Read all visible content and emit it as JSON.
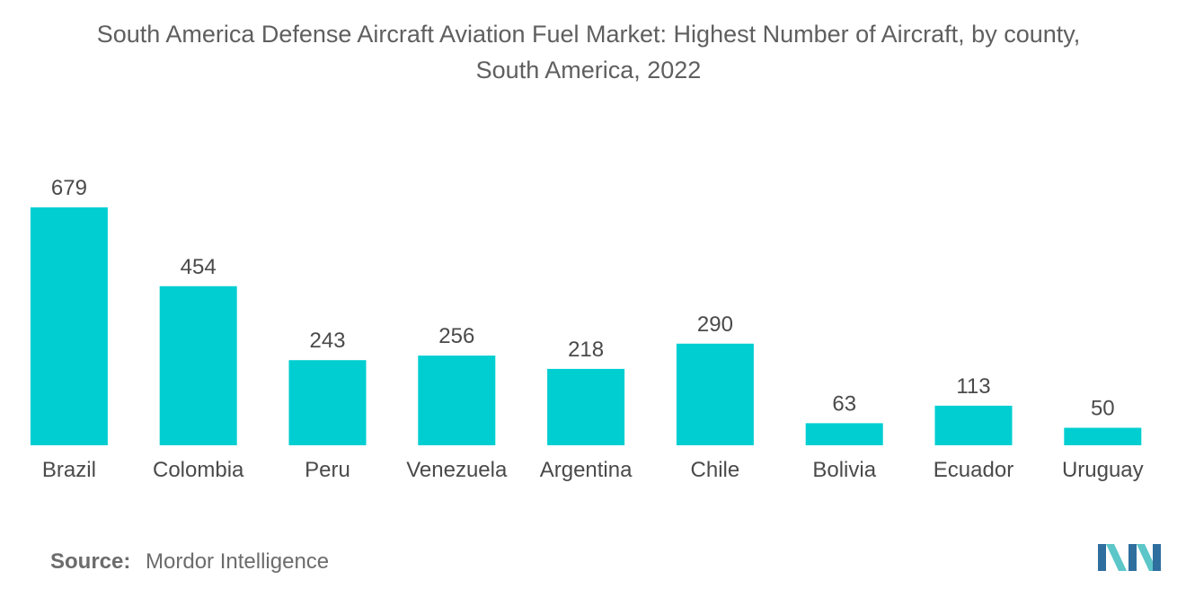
{
  "chart_data": {
    "type": "bar",
    "title_line1": "South America Defense Aircraft Aviation Fuel Market: Highest Number of Aircraft, by county,",
    "title_line2": "South America, 2022",
    "categories": [
      "Brazil",
      "Colombia",
      "Peru",
      "Venezuela",
      "Argentina",
      "Chile",
      "Bolivia",
      "Ecuador",
      "Uruguay"
    ],
    "values": [
      679,
      454,
      243,
      256,
      218,
      290,
      63,
      113,
      50
    ],
    "data_labels": [
      "679",
      "454",
      "243",
      "256",
      "218",
      "290",
      "63",
      "113",
      "50"
    ],
    "xlabel": "",
    "ylabel": "",
    "ylim": [
      0,
      679
    ],
    "grid": false,
    "legend": "none",
    "bar_color": "#00CED1"
  },
  "source": {
    "label": "Source:",
    "value": "Mordor Intelligence"
  },
  "colors": {
    "bar": "#00CED1",
    "text": "#5f5f5f",
    "logo_dark": "#2f6f9f",
    "logo_light": "#5cc6c9"
  }
}
